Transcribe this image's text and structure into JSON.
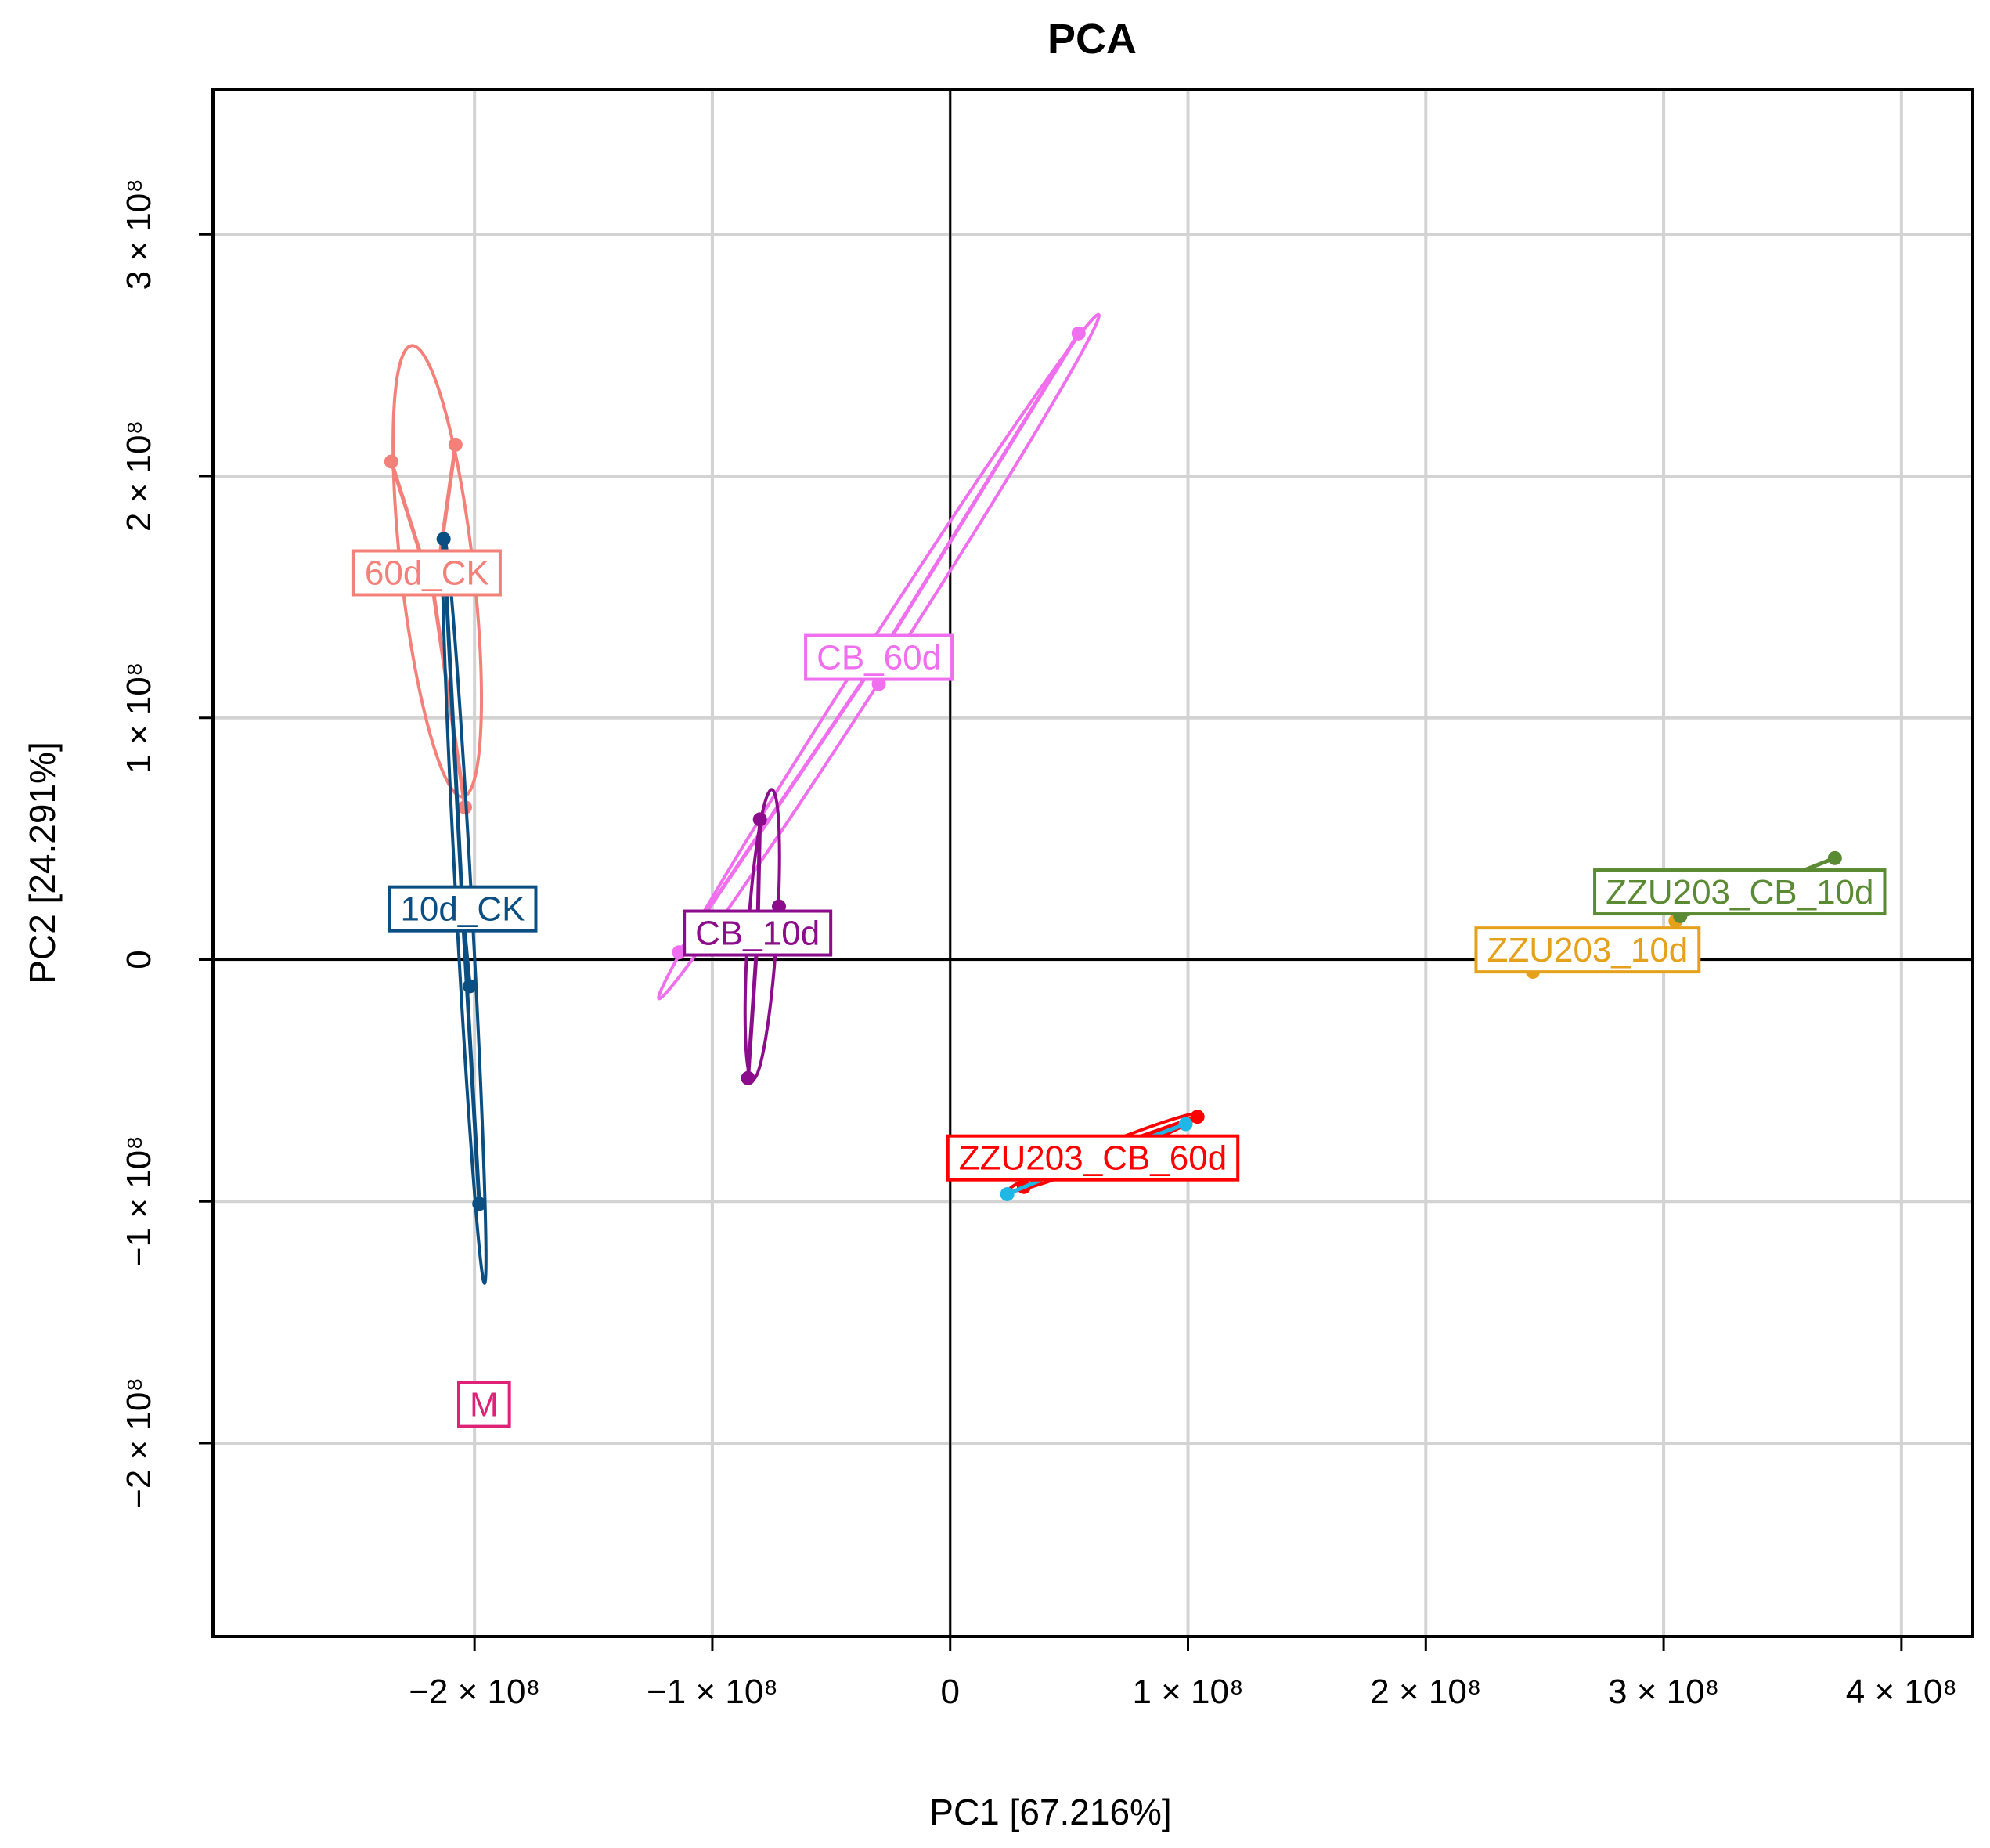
{
  "chart_data": {
    "type": "scatter",
    "title": "PCA",
    "xlabel": "PC1 [67.216%]",
    "ylabel": "PC2 [24.291%]",
    "xlim": [
      -310000000.0,
      430000000.0
    ],
    "ylim": [
      -280000000.0,
      360000000.0
    ],
    "grid": true,
    "zero_lines": true,
    "x_ticks": [
      {
        "value": -200000000.0,
        "label": "−2 × 10⁸"
      },
      {
        "value": -100000000.0,
        "label": "−1 × 10⁸"
      },
      {
        "value": 0,
        "label": "0"
      },
      {
        "value": 100000000.0,
        "label": "1 × 10⁸"
      },
      {
        "value": 200000000.0,
        "label": "2 × 10⁸"
      },
      {
        "value": 300000000.0,
        "label": "3 × 10⁸"
      },
      {
        "value": 400000000.0,
        "label": "4 × 10⁸"
      }
    ],
    "y_ticks": [
      {
        "value": -200000000.0,
        "label": "−2 × 10⁸"
      },
      {
        "value": -100000000.0,
        "label": "−1 × 10⁸"
      },
      {
        "value": 0,
        "label": "0"
      },
      {
        "value": 100000000.0,
        "label": "1 × 10⁸"
      },
      {
        "value": 200000000.0,
        "label": "2 × 10⁸"
      },
      {
        "value": 300000000.0,
        "label": "3 × 10⁸"
      }
    ],
    "series": [
      {
        "name": "60d_CK",
        "color": "#f4807a",
        "centroid": [
          -217000000.0,
          150000000.0
        ],
        "label_at": [
          -220000000.0,
          160000000.0
        ],
        "points": [
          [
            -235000000.0,
            206000000.0
          ],
          [
            -208000000.0,
            213000000.0
          ],
          [
            -204000000.0,
            63000000.0
          ]
        ]
      },
      {
        "name": "10d_CK",
        "color": "#0b4f82",
        "centroid": [
          -205000000.0,
          20000000.0
        ],
        "label_at": [
          -205000000.0,
          21000000.0
        ],
        "points": [
          [
            -213000000.0,
            174000000.0
          ],
          [
            -202000000.0,
            -11000000.0
          ],
          [
            -198000000.0,
            -101000000.0
          ]
        ]
      },
      {
        "name": "CB_60d",
        "color": "#ef6fef",
        "centroid": [
          -30000000.0,
          125000000.0
        ],
        "label_at": [
          -30000000.0,
          125000000.0
        ],
        "points": [
          [
            54000000.0,
            259000000.0
          ],
          [
            -114000000.0,
            3000000.0
          ],
          [
            -30000000.0,
            114000000.0
          ]
        ]
      },
      {
        "name": "CB_10d",
        "color": "#8b0d8b",
        "centroid": [
          -81000000.0,
          10000000.0
        ],
        "label_at": [
          -81000000.0,
          11000000.0
        ],
        "points": [
          [
            -80000000.0,
            58000000.0
          ],
          [
            -72000000.0,
            22000000.0
          ],
          [
            -85000000.0,
            -49000000.0
          ]
        ]
      },
      {
        "name": "ZZU203_CB_60d",
        "color": "#ff0000",
        "centroid": [
          60000000.0,
          -80000000.0
        ],
        "label_at": [
          60000000.0,
          -82000000.0
        ],
        "points": [
          [
            104000000.0,
            -65000000.0
          ],
          [
            31000000.0,
            -94000000.0
          ],
          [
            60000000.0,
            -80000000.0
          ]
        ]
      },
      {
        "name": "M",
        "color": "#1fb8e6",
        "centroid": [
          60000000.0,
          -82000000.0
        ],
        "label_at": [
          -196000000.0,
          -184000000.0
        ],
        "label_color": "#dd2277",
        "points": [
          [
            99000000.0,
            -68000000.0
          ],
          [
            24000000.0,
            -97000000.0
          ]
        ]
      },
      {
        "name": "ZZU203_10d",
        "color": "#e6a11a",
        "centroid": [
          305000000.0,
          10000000.0
        ],
        "label_at": [
          268000000.0,
          4000000.0
        ],
        "points": [
          [
            245000000.0,
            -5000000.0
          ],
          [
            305000000.0,
            16000000.0
          ]
        ]
      },
      {
        "name": "ZZU203_CB_10d",
        "color": "#5a8a32",
        "centroid": [
          315000000.0,
          20000000.0
        ],
        "label_at": [
          332000000.0,
          28000000.0
        ],
        "points": [
          [
            372000000.0,
            42000000.0
          ],
          [
            307000000.0,
            18000000.0
          ]
        ]
      }
    ]
  }
}
